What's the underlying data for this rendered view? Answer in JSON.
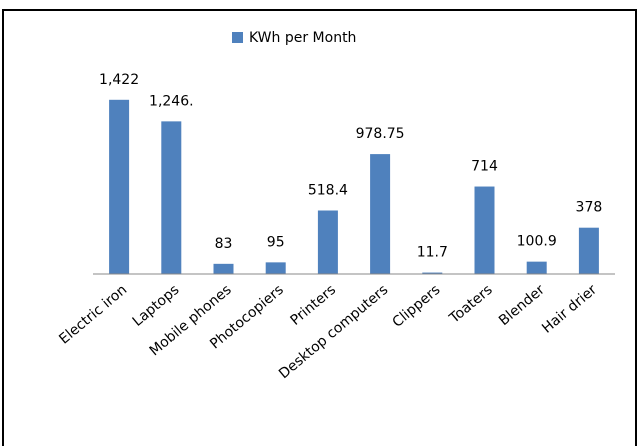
{
  "chart_data": {
    "type": "bar",
    "categories": [
      "Electric iron",
      "Laptops",
      "Mobile phones",
      "Photocopiers",
      "Printers",
      "Desktop computers",
      "Clippers",
      "Toaters",
      "Blender",
      "Hair drier"
    ],
    "series": [
      {
        "name": "KWh per Month",
        "color": "#4f81bd",
        "values": [
          1422,
          1246,
          83,
          95,
          518.4,
          978.75,
          11.7,
          714,
          100.9,
          378
        ],
        "value_labels": [
          "1,422",
          "1,246.",
          "83",
          "95",
          "518.4",
          "978.75",
          "11.7",
          "714",
          "100.9",
          "378"
        ]
      }
    ],
    "ylim": [
      0,
      1600
    ],
    "legend": "top"
  }
}
